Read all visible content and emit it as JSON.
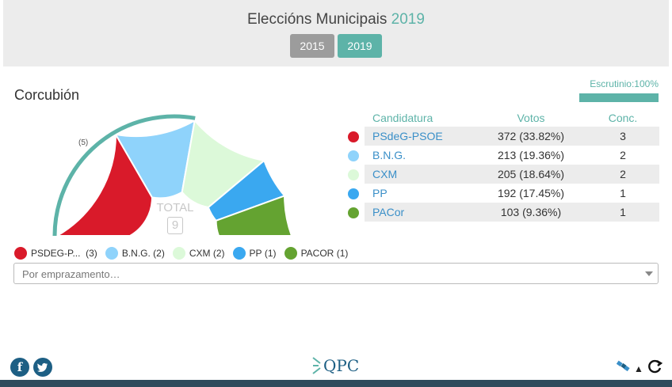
{
  "header": {
    "title": "Eleccións Municipais",
    "title_year": "2019",
    "years": [
      {
        "label": "2015",
        "active": false
      },
      {
        "label": "2019",
        "active": true
      }
    ]
  },
  "place": "Corcubión",
  "scrutiny": {
    "label": "Escrutinio:100%",
    "percent": 100
  },
  "chart": {
    "total_label": "TOTAL",
    "total_value": "9",
    "seat_annotation": "(5)"
  },
  "table": {
    "headers": {
      "candidatura": "Candidatura",
      "votos": "Votos",
      "conc": "Conc."
    },
    "rows": [
      {
        "name": "PSdeG-PSOE",
        "votes": "372 (33.82%)",
        "seats": "3",
        "color": "#d91a2a"
      },
      {
        "name": "B.N.G.",
        "votes": "213 (19.36%)",
        "seats": "2",
        "color": "#8fd3fb"
      },
      {
        "name": "CXM",
        "votes": "205 (18.64%)",
        "seats": "2",
        "color": "#dcf9d9"
      },
      {
        "name": "PP",
        "votes": "192 (17.45%)",
        "seats": "1",
        "color": "#3aa8f0"
      },
      {
        "name": "PACor",
        "votes": "103 (9.36%)",
        "seats": "1",
        "color": "#64a331"
      }
    ]
  },
  "legend": [
    {
      "name": "PSDEG-P...",
      "seats": "(3)",
      "color": "#d91a2a"
    },
    {
      "name": "B.N.G.",
      "seats": "(2)",
      "color": "#8fd3fb"
    },
    {
      "name": "CXM",
      "seats": "(2)",
      "color": "#dcf9d9"
    },
    {
      "name": "PP",
      "seats": "(1)",
      "color": "#3aa8f0"
    },
    {
      "name": "PACOR",
      "seats": "(1)",
      "color": "#64a331"
    }
  ],
  "select": {
    "placeholder": "Por emprazamento…"
  },
  "footer": {
    "facebook_glyph": "f",
    "logo_text": "QPC"
  },
  "colors": {
    "accent": "#5db3a8",
    "link": "#3a8fc8",
    "brand": "#1d5f84"
  }
}
